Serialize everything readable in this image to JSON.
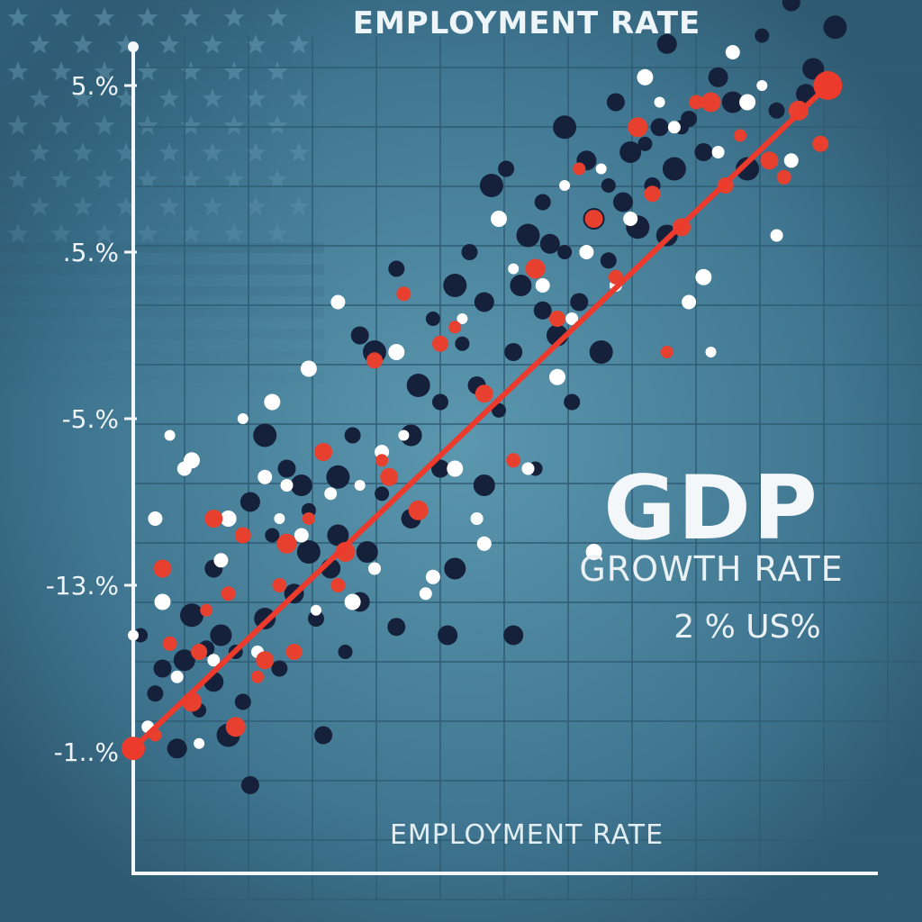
{
  "header": {
    "title": "EMPLOYMENT RATE"
  },
  "xaxis": {
    "label": "EMPLOYMENT RATE"
  },
  "annotation": {
    "big": "GDP",
    "sub": "GROWTH RATE",
    "note": "2 % US%"
  },
  "colors": {
    "background": "#3f7088",
    "grid": "#2f5d73",
    "axis": "#f4f7f9",
    "dark_point": "#15213a",
    "white_point": "#ffffff",
    "red_point": "#e8402f",
    "trend": "#ec3b2c"
  },
  "chart_data": {
    "type": "scatter",
    "title": "EMPLOYMENT RATE",
    "xlabel": "EMPLOYMENT RATE",
    "ylabel": "",
    "y_ticks": [
      {
        "label": "5.%",
        "value": 4
      },
      {
        "label": ".5.%",
        "value": 3
      },
      {
        "label": "-5.%",
        "value": 2
      },
      {
        "label": "-13.%",
        "value": 1
      },
      {
        "label": "-1..%",
        "value": 0
      }
    ],
    "xlim": [
      0,
      100
    ],
    "ylim": [
      -0.5,
      4.4
    ],
    "grid": true,
    "trend_line": [
      [
        0,
        0.02
      ],
      [
        95,
        4.0
      ]
    ],
    "series": [
      {
        "color": "dark",
        "points": [
          [
            1,
            0.7
          ],
          [
            3,
            0.35
          ],
          [
            4,
            0.5
          ],
          [
            6,
            0.02
          ],
          [
            7,
            0.55
          ],
          [
            8,
            0.82
          ],
          [
            9,
            0.25
          ],
          [
            10,
            0.62
          ],
          [
            11,
            1.1
          ],
          [
            11,
            0.42
          ],
          [
            12,
            0.7
          ],
          [
            13,
            0.1
          ],
          [
            14,
            0.6
          ],
          [
            15,
            0.3
          ],
          [
            16,
            -0.2
          ],
          [
            16,
            1.5
          ],
          [
            18,
            0.8
          ],
          [
            18,
            1.9
          ],
          [
            19,
            1.3
          ],
          [
            20,
            0.5
          ],
          [
            21,
            1.7
          ],
          [
            22,
            0.95
          ],
          [
            23,
            1.6
          ],
          [
            24,
            1.2
          ],
          [
            24,
            1.45
          ],
          [
            25,
            0.8
          ],
          [
            26,
            0.1
          ],
          [
            27,
            1.1
          ],
          [
            28,
            1.3
          ],
          [
            28,
            1.65
          ],
          [
            29,
            0.6
          ],
          [
            30,
            1.9
          ],
          [
            31,
            2.5
          ],
          [
            31,
            0.9
          ],
          [
            32,
            1.2
          ],
          [
            33,
            2.4
          ],
          [
            34,
            1.55
          ],
          [
            36,
            2.9
          ],
          [
            36,
            0.75
          ],
          [
            38,
            1.4
          ],
          [
            38,
            1.9
          ],
          [
            39,
            2.2
          ],
          [
            41,
            2.6
          ],
          [
            42,
            2.1
          ],
          [
            42,
            1.7
          ],
          [
            43,
            0.7
          ],
          [
            44,
            1.1
          ],
          [
            44,
            2.8
          ],
          [
            45,
            2.45
          ],
          [
            46,
            3.0
          ],
          [
            47,
            2.2
          ],
          [
            48,
            2.7
          ],
          [
            48,
            1.6
          ],
          [
            49,
            3.4
          ],
          [
            50,
            2.05
          ],
          [
            51,
            3.5
          ],
          [
            52,
            2.4
          ],
          [
            52,
            0.7
          ],
          [
            53,
            2.8
          ],
          [
            54,
            3.1
          ],
          [
            55,
            1.7
          ],
          [
            56,
            3.3
          ],
          [
            56,
            2.65
          ],
          [
            57,
            3.05
          ],
          [
            58,
            2.5
          ],
          [
            59,
            3.75
          ],
          [
            59,
            3.0
          ],
          [
            60,
            2.1
          ],
          [
            61,
            2.7
          ],
          [
            62,
            3.55
          ],
          [
            63,
            3.2
          ],
          [
            64,
            2.4
          ],
          [
            65,
            3.4
          ],
          [
            65,
            2.95
          ],
          [
            66,
            3.9
          ],
          [
            67,
            3.3
          ],
          [
            68,
            3.6
          ],
          [
            69,
            3.15
          ],
          [
            70,
            3.65
          ],
          [
            71,
            3.4
          ],
          [
            72,
            3.75
          ],
          [
            73,
            4.25
          ],
          [
            73,
            3.1
          ],
          [
            74,
            3.5
          ],
          [
            75,
            3.75
          ],
          [
            76,
            3.8
          ],
          [
            78,
            3.6
          ],
          [
            80,
            4.05
          ],
          [
            82,
            3.9
          ],
          [
            84,
            3.5
          ],
          [
            86,
            4.3
          ],
          [
            88,
            3.85
          ],
          [
            90,
            4.5
          ],
          [
            92,
            3.95
          ],
          [
            93,
            4.1
          ],
          [
            96,
            4.35
          ]
        ]
      },
      {
        "color": "white",
        "points": [
          [
            0,
            0.7
          ],
          [
            2,
            0.15
          ],
          [
            3,
            1.4
          ],
          [
            4,
            0.9
          ],
          [
            5,
            1.9
          ],
          [
            6,
            0.45
          ],
          [
            7,
            1.7
          ],
          [
            8,
            1.75
          ],
          [
            9,
            0.05
          ],
          [
            11,
            0.55
          ],
          [
            12,
            1.15
          ],
          [
            13,
            1.4
          ],
          [
            15,
            2.0
          ],
          [
            17,
            0.6
          ],
          [
            18,
            1.65
          ],
          [
            19,
            2.1
          ],
          [
            20,
            1.4
          ],
          [
            21,
            1.6
          ],
          [
            23,
            1.3
          ],
          [
            24,
            2.3
          ],
          [
            25,
            0.85
          ],
          [
            27,
            1.55
          ],
          [
            28,
            2.7
          ],
          [
            30,
            0.9
          ],
          [
            31,
            1.6
          ],
          [
            33,
            1.1
          ],
          [
            34,
            1.8
          ],
          [
            36,
            2.4
          ],
          [
            37,
            1.9
          ],
          [
            40,
            0.95
          ],
          [
            41,
            1.05
          ],
          [
            44,
            1.7
          ],
          [
            45,
            2.6
          ],
          [
            47,
            1.4
          ],
          [
            48,
            1.25
          ],
          [
            50,
            3.2
          ],
          [
            52,
            2.9
          ],
          [
            54,
            1.7
          ],
          [
            56,
            2.8
          ],
          [
            58,
            2.25
          ],
          [
            59,
            3.4
          ],
          [
            60,
            2.6
          ],
          [
            62,
            3.0
          ],
          [
            63,
            1.2
          ],
          [
            64,
            3.5
          ],
          [
            66,
            2.8
          ],
          [
            68,
            3.2
          ],
          [
            70,
            4.05
          ],
          [
            72,
            3.9
          ],
          [
            74,
            3.75
          ],
          [
            76,
            2.7
          ],
          [
            78,
            2.85
          ],
          [
            79,
            2.4
          ],
          [
            80,
            3.6
          ],
          [
            82,
            4.2
          ],
          [
            84,
            3.9
          ],
          [
            86,
            4.0
          ],
          [
            88,
            3.1
          ],
          [
            90,
            3.55
          ]
        ]
      },
      {
        "color": "red",
        "points": [
          [
            3,
            0.1
          ],
          [
            4,
            1.1
          ],
          [
            5,
            0.65
          ],
          [
            8,
            0.3
          ],
          [
            9,
            0.6
          ],
          [
            10,
            0.85
          ],
          [
            11,
            1.4
          ],
          [
            13,
            0.95
          ],
          [
            14,
            0.15
          ],
          [
            15,
            1.3
          ],
          [
            17,
            0.45
          ],
          [
            18,
            0.55
          ],
          [
            20,
            1.0
          ],
          [
            21,
            1.25
          ],
          [
            22,
            0.6
          ],
          [
            24,
            1.4
          ],
          [
            26,
            1.8
          ],
          [
            28,
            1.0
          ],
          [
            29,
            1.2
          ],
          [
            33,
            2.35
          ],
          [
            34,
            1.75
          ],
          [
            35,
            1.65
          ],
          [
            37,
            2.75
          ],
          [
            39,
            1.45
          ],
          [
            42,
            2.45
          ],
          [
            44,
            2.55
          ],
          [
            48,
            2.15
          ],
          [
            52,
            1.75
          ],
          [
            55,
            2.9
          ],
          [
            58,
            2.6
          ],
          [
            61,
            3.5
          ],
          [
            63,
            3.2
          ],
          [
            66,
            2.85
          ],
          [
            69,
            3.75
          ],
          [
            71,
            3.35
          ],
          [
            73,
            2.4
          ],
          [
            75,
            3.15
          ],
          [
            77,
            3.9
          ],
          [
            79,
            3.9
          ],
          [
            81,
            3.4
          ],
          [
            83,
            3.7
          ],
          [
            87,
            3.55
          ],
          [
            89,
            3.45
          ],
          [
            91,
            3.85
          ],
          [
            94,
            3.65
          ]
        ]
      }
    ]
  }
}
